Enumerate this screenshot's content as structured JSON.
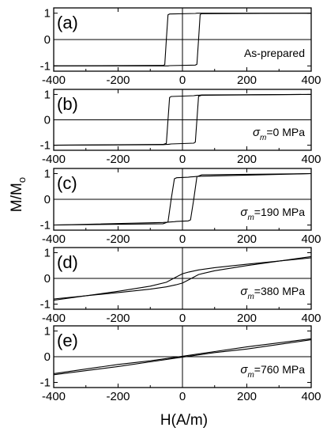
{
  "chart_data": {
    "type": "line",
    "xlabel": "H(A/m)",
    "ylabel": "M/M",
    "ylabel_sub": "o",
    "xlim": [
      -400,
      400
    ],
    "ylim": [
      -1.2,
      1.2
    ],
    "x_ticks": [
      -400,
      -200,
      0,
      200,
      400
    ],
    "y_ticks": [
      -1,
      0,
      1
    ],
    "grid": false,
    "panels": [
      {
        "label": "(a)",
        "annotation": {
          "text": "As-prepared"
        },
        "x": [
          -400,
          -60,
          -55,
          -50,
          -45,
          -40,
          40,
          45,
          50,
          55,
          60,
          400
        ],
        "branches": [
          {
            "name": "",
            "y": [
              -1.0,
              -0.98,
              -0.95,
              0.0,
              0.94,
              0.97,
              0.99,
              1.0,
              1.0,
              1.0,
              1.0,
              1.0
            ]
          },
          {
            "name": "",
            "y": [
              -1.0,
              -1.0,
              -1.0,
              -1.0,
              -1.0,
              -0.99,
              -0.97,
              -0.94,
              0.0,
              0.95,
              0.98,
              1.0
            ]
          }
        ]
      },
      {
        "label": "(b)",
        "annotation": {
          "sym": "σ",
          "sub": "m",
          "text": "=0 MPa"
        },
        "x": [
          -400,
          -60,
          -50,
          -45,
          -40,
          -35,
          35,
          40,
          45,
          50,
          60,
          400
        ],
        "branches": [
          {
            "name": "",
            "y": [
              -1.0,
              -0.97,
              -0.93,
              0.0,
              0.88,
              0.92,
              0.95,
              0.96,
              0.97,
              0.97,
              0.98,
              1.0
            ]
          },
          {
            "name": "",
            "y": [
              -1.0,
              -0.98,
              -0.97,
              -0.97,
              -0.96,
              -0.95,
              -0.92,
              -0.88,
              0.0,
              0.93,
              0.97,
              1.0
            ]
          }
        ]
      },
      {
        "label": "(c)",
        "annotation": {
          "sym": "σ",
          "sub": "m",
          "text": "=190 MPa"
        },
        "x": [
          -400,
          -60,
          -45,
          -35,
          -25,
          -18,
          18,
          25,
          35,
          45,
          60,
          400
        ],
        "branches": [
          {
            "name": "",
            "y": [
              -1.0,
              -0.95,
              -0.88,
              0.0,
              0.8,
              0.84,
              0.86,
              0.87,
              0.88,
              0.89,
              0.9,
              1.0
            ]
          },
          {
            "name": "",
            "y": [
              -1.0,
              -0.9,
              -0.89,
              -0.88,
              -0.87,
              -0.86,
              -0.84,
              -0.8,
              0.0,
              0.88,
              0.95,
              1.0
            ]
          }
        ]
      },
      {
        "label": "(d)",
        "annotation": {
          "sym": "σ",
          "sub": "m",
          "text": "=380 MPa"
        },
        "x": [
          -400,
          -200,
          -100,
          -50,
          -20,
          0,
          20,
          50,
          100,
          200,
          400
        ],
        "branches": [
          {
            "name": "",
            "y": [
              -0.85,
              -0.5,
              -0.3,
              -0.15,
              0.05,
              0.18,
              0.25,
              0.33,
              0.42,
              0.55,
              0.8
            ]
          },
          {
            "name": "",
            "y": [
              -0.8,
              -0.55,
              -0.42,
              -0.33,
              -0.25,
              -0.18,
              -0.05,
              0.15,
              0.3,
              0.5,
              0.85
            ]
          }
        ]
      },
      {
        "label": "(e)",
        "annotation": {
          "sym": "σ",
          "sub": "m",
          "text": "=760 MPa"
        },
        "x": [
          -400,
          -200,
          -100,
          0,
          100,
          200,
          400
        ],
        "branches": [
          {
            "name": "",
            "y": [
              -0.7,
              -0.38,
              -0.2,
              -0.02,
              0.16,
              0.3,
              0.66
            ]
          },
          {
            "name": "",
            "y": [
              -0.66,
              -0.3,
              -0.16,
              0.02,
              0.2,
              0.38,
              0.7
            ]
          }
        ]
      }
    ]
  }
}
